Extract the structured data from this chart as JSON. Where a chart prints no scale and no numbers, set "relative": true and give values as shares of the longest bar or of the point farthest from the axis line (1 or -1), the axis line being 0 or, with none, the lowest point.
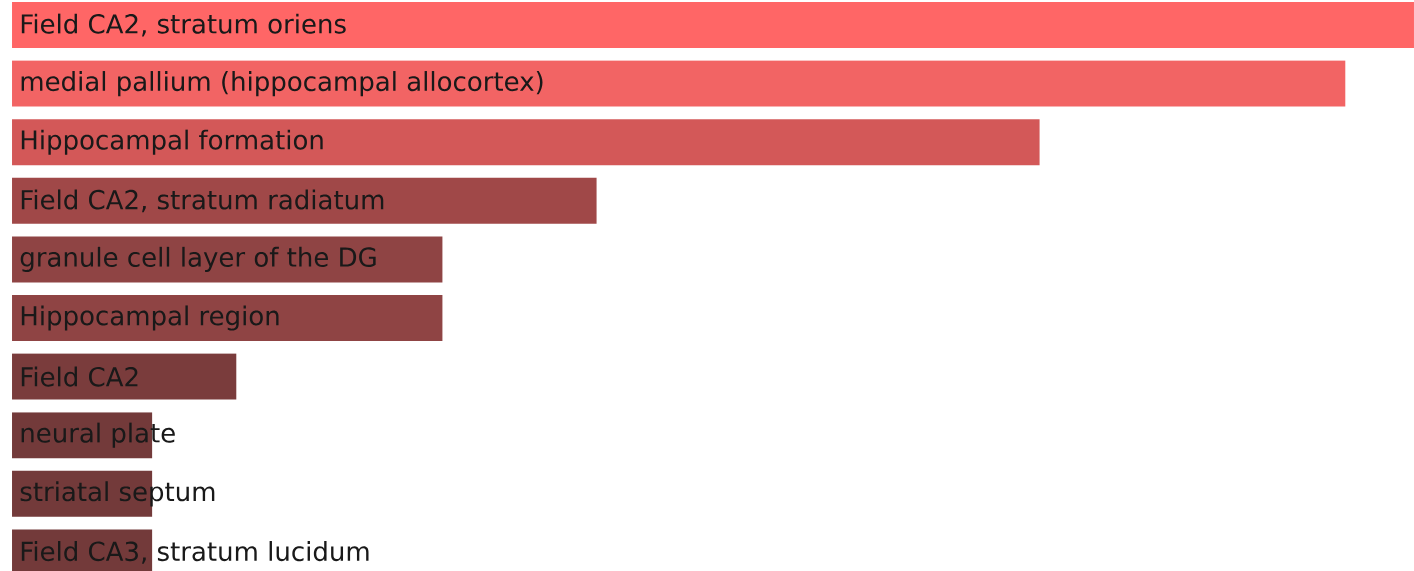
{
  "chart_data": {
    "type": "bar",
    "orientation": "horizontal",
    "relative": true,
    "categories": [
      "Field CA2, stratum oriens",
      "medial pallium (hippocampal allocortex)",
      "Hippocampal formation",
      "Field CA2, stratum radiatum",
      "granule cell layer of the DG",
      "Hippocampal region",
      "Field CA2",
      "neural plate",
      "striatal septum",
      "Field CA3, stratum lucidum"
    ],
    "values": [
      1,
      0.951,
      0.733,
      0.417,
      0.307,
      0.307,
      0.16,
      0.1,
      0.1,
      0.1
    ],
    "colors": [
      "#ff6666",
      "#f26464",
      "#d35858",
      "#a04848",
      "#8f4444",
      "#8f4444",
      "#7a3c3c",
      "#733a3a",
      "#733a3a",
      "#733a3a"
    ]
  }
}
